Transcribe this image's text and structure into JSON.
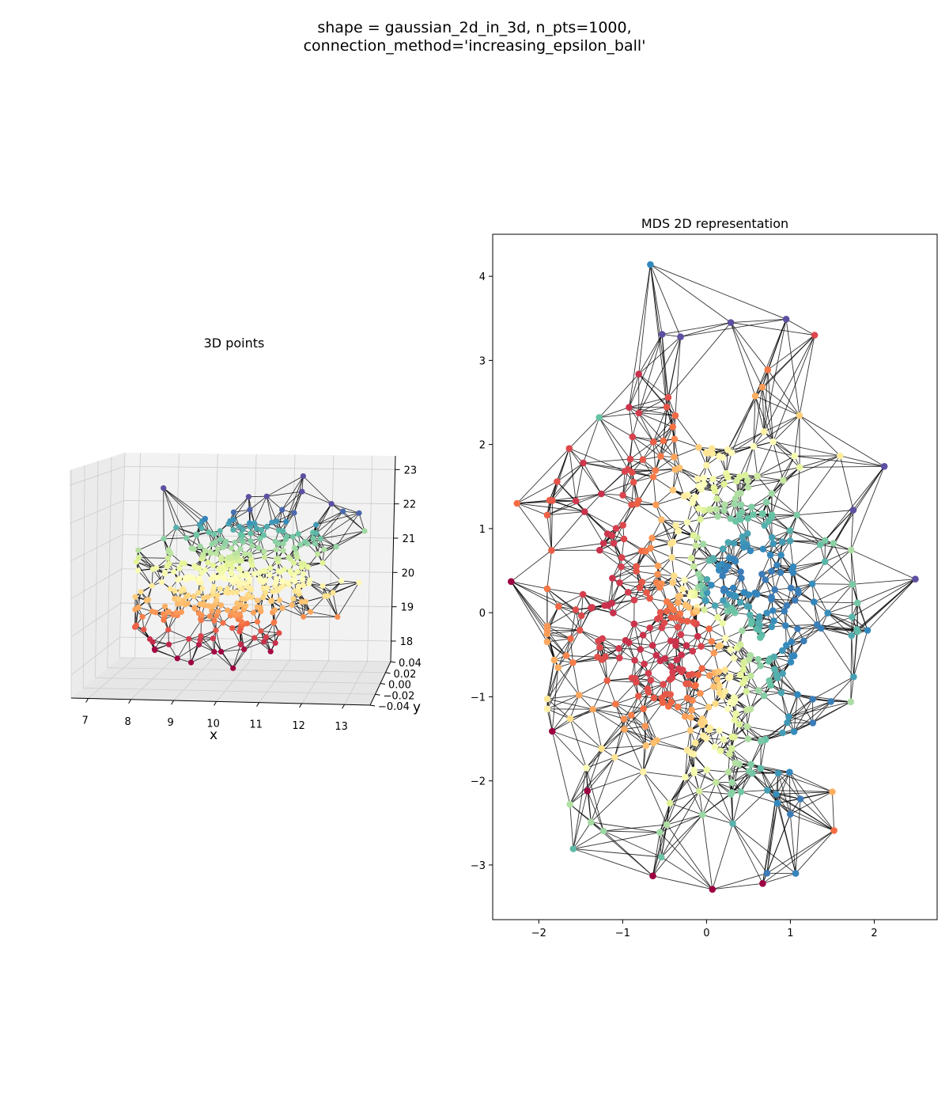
{
  "suptitle": {
    "line1": "shape = gaussian_2d_in_3d, n_pts=1000,",
    "line2": "connection_method='increasing_epsilon_ball'"
  },
  "chart_data": [
    {
      "type": "scatter",
      "subtype": "3d-scatter-with-edges",
      "title": "3D points",
      "xlabel": "x",
      "ylabel": "y",
      "zlabel": "",
      "x_ticks": [
        "7",
        "8",
        "9",
        "10",
        "11",
        "12",
        "13"
      ],
      "y_ticks": [
        "0.04",
        "0.02",
        "0.00",
        "−0.02",
        "−0.04"
      ],
      "z_ticks": [
        "23",
        "22",
        "21",
        "20",
        "19",
        "18"
      ],
      "xlim": [
        6.6,
        13.6
      ],
      "ylim": [
        -0.04,
        0.04
      ],
      "zlim": [
        17.4,
        23.4
      ],
      "n_points": 1000,
      "point_distribution": "gaussian, x center ~10, z center ~20.3, flat in y",
      "colormap": "Spectral, colored by z (red low, yellow mid, blue high)",
      "edge_color": "#000000",
      "grid": true,
      "pane_color": "#f2f2f2"
    },
    {
      "type": "scatter",
      "subtype": "scatter-with-edges",
      "title": "MDS 2D representation",
      "xlabel": "",
      "ylabel": "",
      "x_ticks": [
        "−2",
        "−1",
        "0",
        "1",
        "2"
      ],
      "y_ticks": [
        "4",
        "3",
        "2",
        "1",
        "0",
        "−1",
        "−2",
        "−3"
      ],
      "xlim": [
        -2.55,
        2.75
      ],
      "ylim": [
        -3.65,
        4.5
      ],
      "n_points": 1000,
      "colormap": "Spectral",
      "edge_color": "#000000",
      "grid": false,
      "notable_points": [
        {
          "x": -0.67,
          "y": 4.14,
          "color": "#4a6fb3"
        },
        {
          "x": 0.95,
          "y": 3.49,
          "color": "#5e4fa2"
        },
        {
          "x": 0.29,
          "y": 3.45,
          "color": "#5e4fa2"
        },
        {
          "x": -0.53,
          "y": 3.31,
          "color": "#5e4fa2"
        },
        {
          "x": -0.31,
          "y": 3.28,
          "color": "#5e4fa2"
        },
        {
          "x": 2.12,
          "y": 1.74,
          "color": "#5e4fa2"
        },
        {
          "x": 2.49,
          "y": 0.4,
          "color": "#5e4fa2"
        },
        {
          "x": 1.92,
          "y": -0.21,
          "color": "#3288bd"
        },
        {
          "x": 1.72,
          "y": -1.06,
          "color": "#abdda4"
        },
        {
          "x": -2.26,
          "y": 1.3,
          "color": "#f46d43"
        },
        {
          "x": -2.33,
          "y": 0.37,
          "color": "#9e0142"
        },
        {
          "x": -1.84,
          "y": -1.41,
          "color": "#9e0142"
        },
        {
          "x": -1.42,
          "y": -2.12,
          "color": "#9e0142"
        },
        {
          "x": 0.07,
          "y": -3.29,
          "color": "#9e0142"
        },
        {
          "x": 0.67,
          "y": -3.22,
          "color": "#9e0142"
        },
        {
          "x": -0.64,
          "y": -3.13,
          "color": "#9e0142"
        },
        {
          "x": 1.52,
          "y": -2.59,
          "color": "#f46d43"
        },
        {
          "x": 1.5,
          "y": -2.13,
          "color": "#fdae61"
        },
        {
          "x": -1.28,
          "y": 2.32,
          "color": "#66c2a5"
        },
        {
          "x": 1.75,
          "y": 1.22,
          "color": "#5e4fa2"
        }
      ]
    }
  ]
}
